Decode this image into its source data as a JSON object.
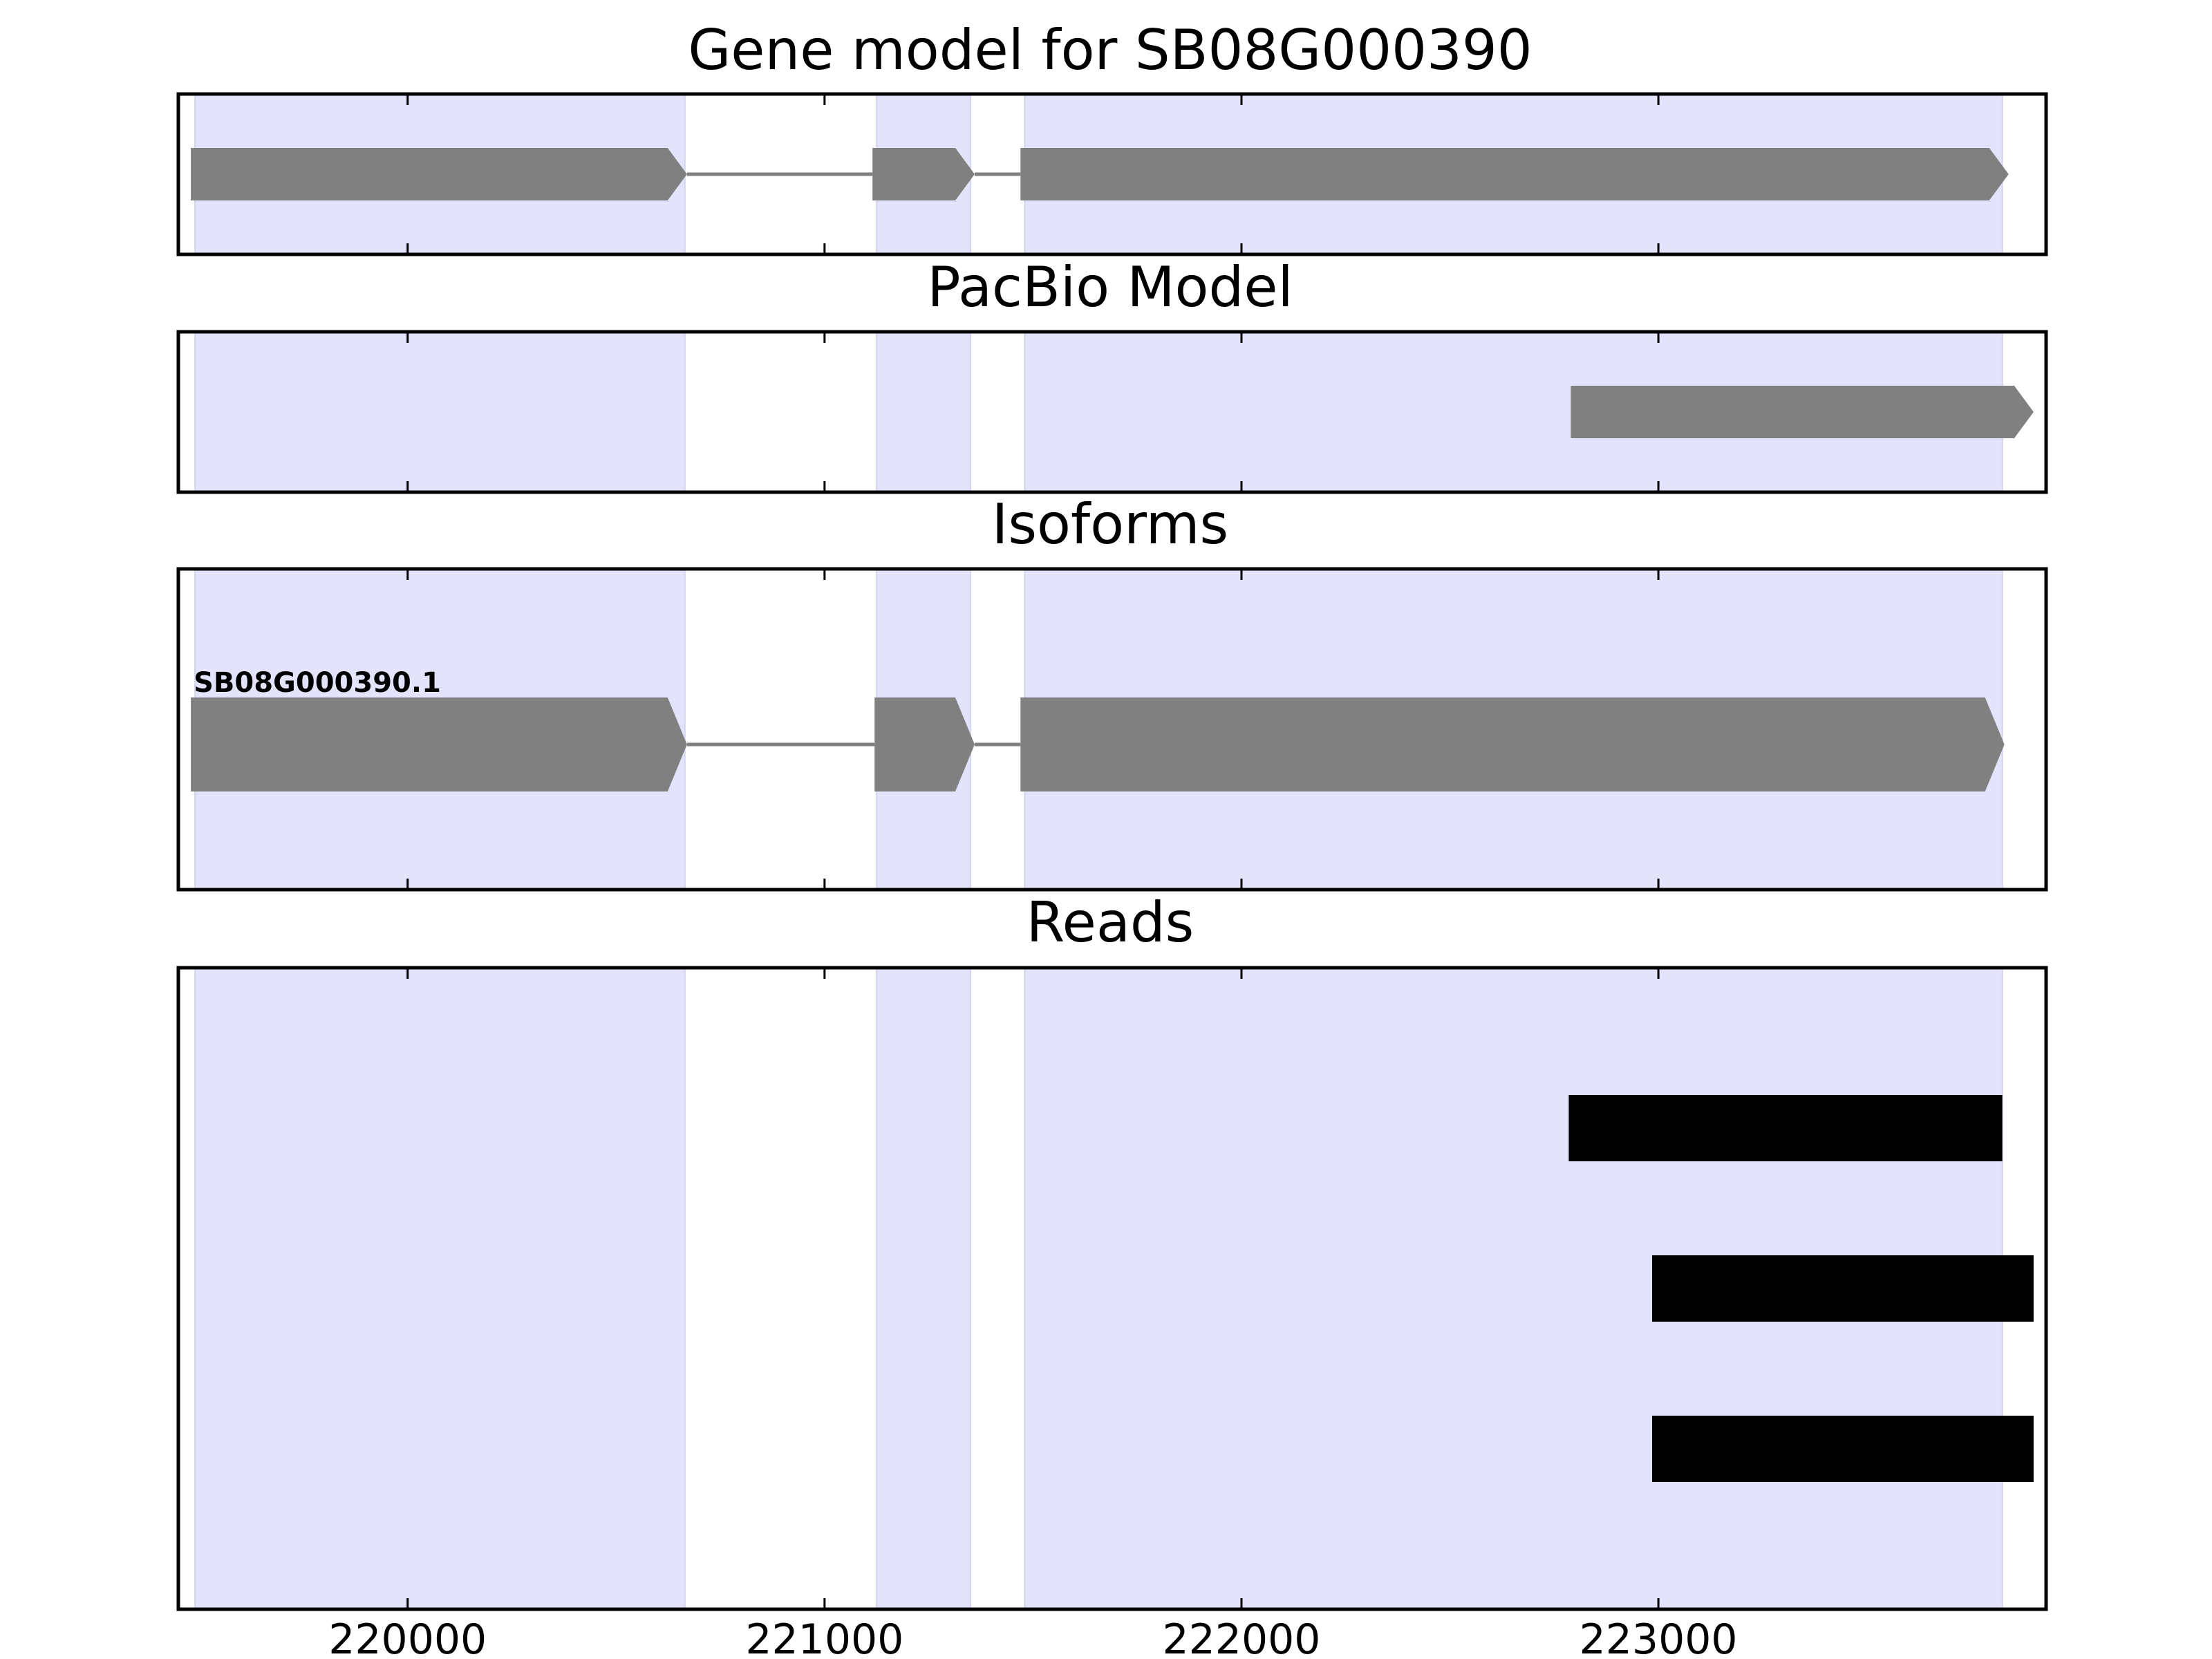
{
  "colors": {
    "exon_region": "#e3e3fb",
    "exon_region_edge": "#d4d4ee",
    "gene_feature": "#808080",
    "read": "#000000",
    "frame": "#000000"
  },
  "chart_data": {
    "type": "gene-track",
    "xlim": [
      219450,
      223930
    ],
    "x_ticks": [
      220000,
      221000,
      222000,
      223000
    ],
    "x_tick_labels": [
      "220000",
      "221000",
      "222000",
      "223000"
    ],
    "shaded_regions": [
      [
        219490,
        220665
      ],
      [
        221125,
        221350
      ],
      [
        221480,
        223825
      ]
    ],
    "strand": "+",
    "panels": [
      {
        "key": "gene_model",
        "title": "Gene model for SB08G000390",
        "tracks": [
          {
            "label": "",
            "exons": [
              [
                219480,
                220670
              ],
              [
                221115,
                221360
              ],
              [
                221470,
                223840
              ]
            ]
          }
        ]
      },
      {
        "key": "pacbio",
        "title": "PacBio Model",
        "tracks": [
          {
            "label": "",
            "exons": [
              [
                222790,
                223900
              ]
            ]
          }
        ]
      },
      {
        "key": "isoforms",
        "title": "Isoforms",
        "tracks": [
          {
            "label": "SB08G000390.1",
            "exons": [
              [
                219480,
                220670
              ],
              [
                221120,
                221360
              ],
              [
                221470,
                223830
              ]
            ]
          }
        ]
      },
      {
        "key": "reads",
        "title": "Reads",
        "reads": [
          [
            222785,
            223825
          ],
          [
            222985,
            223900
          ],
          [
            222985,
            223900
          ]
        ]
      }
    ]
  }
}
